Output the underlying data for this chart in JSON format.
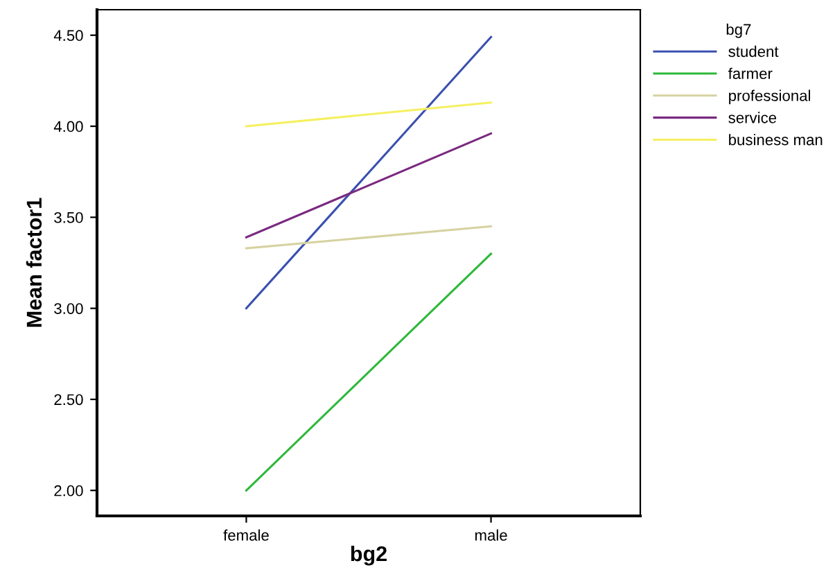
{
  "chart_data": {
    "type": "line",
    "xlabel": "bg2",
    "ylabel": "Mean factor1",
    "legend_title": "bg7",
    "legend": "top right",
    "grid": false,
    "marker": "none",
    "line_style": "solid",
    "categories": [
      "female",
      "male"
    ],
    "series": [
      {
        "name": "student",
        "color": "#3a50b0",
        "values": [
          3.0,
          4.49
        ]
      },
      {
        "name": "farmer",
        "color": "#2eb83a",
        "values": [
          2.0,
          3.3
        ]
      },
      {
        "name": "professional",
        "color": "#d6d2a0",
        "values": [
          3.33,
          3.45
        ]
      },
      {
        "name": "service",
        "color": "#7a2a80",
        "values": [
          3.39,
          3.96
        ]
      },
      {
        "name": "business man",
        "color": "#f5f060",
        "values": [
          4.0,
          4.13
        ]
      }
    ],
    "ylim": [
      1.86,
      4.64
    ],
    "yticks": [
      {
        "value": 2,
        "label": "2.00"
      },
      {
        "value": 2.5,
        "label": "2.50"
      },
      {
        "value": 3,
        "label": "3.00"
      },
      {
        "value": 3.5,
        "label": "3.50"
      },
      {
        "value": 4,
        "label": "4.00"
      },
      {
        "value": 4.5,
        "label": "4.50"
      }
    ]
  }
}
